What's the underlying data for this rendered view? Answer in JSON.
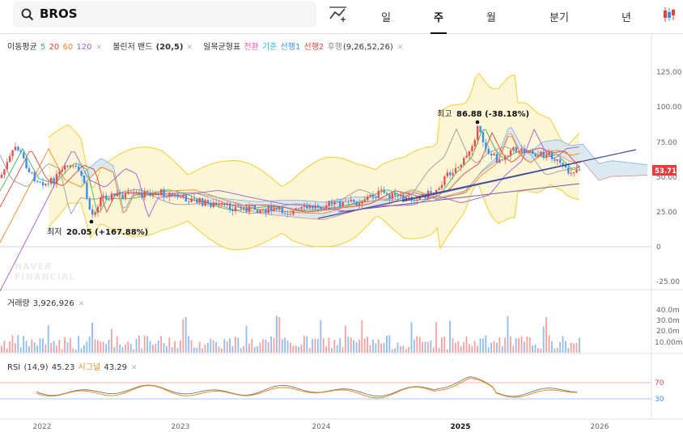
{
  "search": {
    "query": "BROS"
  },
  "tabs": [
    {
      "label": "일"
    },
    {
      "label": "주"
    },
    {
      "label": "월"
    },
    {
      "label": "분기"
    },
    {
      "label": "년"
    }
  ],
  "legend": {
    "ma": {
      "label": "이동평균",
      "periods": [
        "5",
        "20",
        "60",
        "120"
      ],
      "colors": [
        "#3fb75a",
        "#e0443e",
        "#ef8a1d",
        "#a35bd6"
      ]
    },
    "bb": {
      "label": "볼린저 밴드",
      "params": "(20,5)"
    },
    "ichimoku": {
      "label": "일목균형표",
      "items": [
        "전환",
        "기준",
        "선행1",
        "선행2",
        "후행"
      ],
      "colors": [
        "#f05aa8",
        "#22b9d9",
        "#3a8ee8",
        "#e0443e",
        "#888888"
      ],
      "params": "(9,26,52,26)"
    }
  },
  "price_axis": {
    "ticks": [
      "125.00",
      "100.00",
      "75.00",
      "50.00",
      "25.00",
      "0",
      "-25.00"
    ],
    "current": "53.71"
  },
  "annotations": {
    "high_label": "최고",
    "high_value": "86.88 (-38.18%)",
    "low_label": "최저",
    "low_value": "20.05 (+167.88%)"
  },
  "watermark": {
    "line1": "NAVER",
    "line2": "FINANCIAL"
  },
  "volume": {
    "label": "거래량",
    "value": "3,926,926",
    "ticks": [
      "40.0m",
      "30.0m",
      "20.0m",
      "10.00m"
    ]
  },
  "rsi": {
    "label": "RSI",
    "params": "(14,9)",
    "value": "45.23",
    "signal_label": "시그널",
    "signal_value": "43.29",
    "ticks": [
      "70",
      "30"
    ]
  },
  "time_axis": {
    "labels": [
      "2022",
      "2023",
      "2024",
      "2025",
      "2026"
    ]
  },
  "colors": {
    "up": "#ec4d4d",
    "down": "#3d8fe6",
    "band": "#f2cf2a",
    "current": "#e83b3b"
  }
}
